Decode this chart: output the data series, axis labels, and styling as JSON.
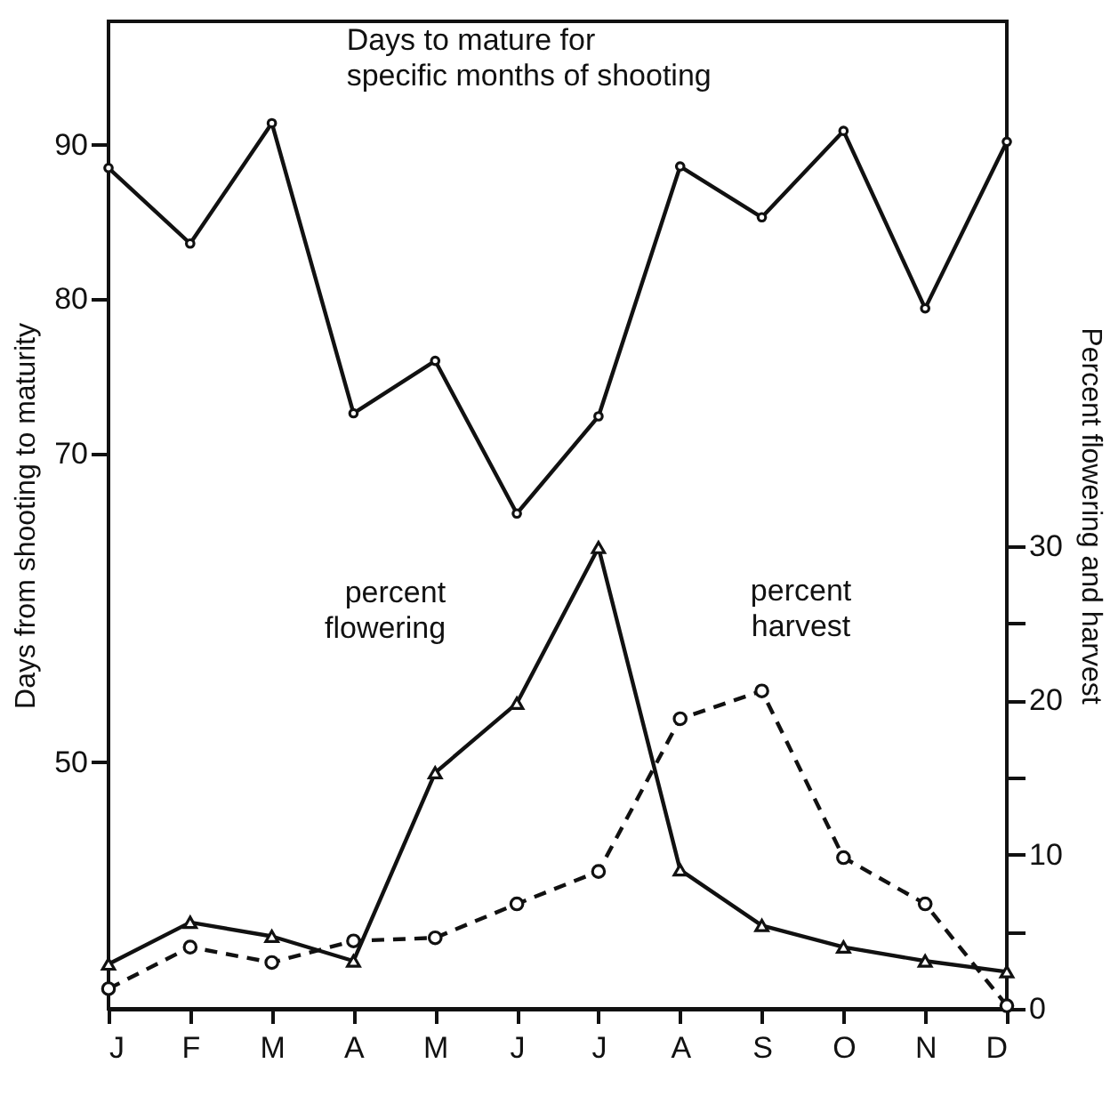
{
  "chart_data": {
    "type": "line",
    "categories": [
      "J",
      "F",
      "M",
      "A",
      "M",
      "J",
      "J",
      "A",
      "S",
      "O",
      "N",
      "D"
    ],
    "series": [
      {
        "name": "Days to mature for specific months of shooting",
        "color": "#111111",
        "marker": "circle",
        "line_style": "solid",
        "values": [
          88.5,
          83.6,
          91.4,
          72.6,
          76.0,
          66.1,
          72.4,
          88.6,
          85.3,
          90.9,
          79.4,
          90.2
        ]
      },
      {
        "name": "percent flowering",
        "color": "#111111",
        "marker": "triangle",
        "line_style": "solid",
        "axis": "y2",
        "values": [
          2.9,
          5.6,
          4.7,
          3.1,
          15.3,
          19.8,
          29.9,
          9.0,
          5.4,
          4.0,
          3.1,
          2.4
        ]
      },
      {
        "name": "percent harvest",
        "color": "#111111",
        "marker": "circle",
        "line_style": "dashed",
        "axis": "y2",
        "values": [
          1.3,
          4.0,
          3.0,
          4.4,
          4.6,
          6.8,
          8.9,
          18.8,
          20.6,
          9.8,
          6.8,
          0.2
        ]
      }
    ],
    "ylabel": "Days from shooting to maturity",
    "y2label": "Percent flowering and harvest",
    "ylim": [
      34,
      98
    ],
    "yticks": [
      50,
      70,
      80,
      90
    ],
    "y2lim": [
      0,
      64
    ],
    "y2ticks": [
      0,
      {
        "value": 5,
        "label": null
      },
      10,
      {
        "value": 15,
        "label": null
      },
      20,
      {
        "value": 25,
        "label": null
      },
      30
    ]
  }
}
